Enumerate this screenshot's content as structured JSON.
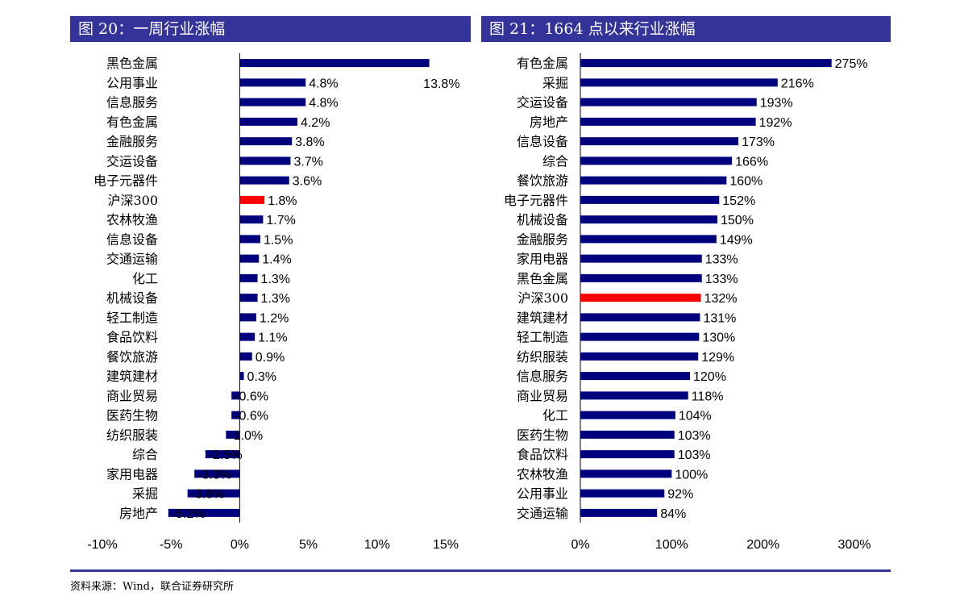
{
  "figures": {
    "left_title": "图 20：一周行业涨幅",
    "right_title": "图 21：1664 点以来行业涨幅"
  },
  "source": "资料来源：Wind，联合证券研究所",
  "colors": {
    "bar": "#00007f",
    "highlight": "#ff0000",
    "title_bg": "#33339a"
  },
  "chart_data": [
    {
      "type": "bar",
      "orientation": "horizontal",
      "title": "图 20：一周行业涨幅",
      "categories": [
        "黑色金属",
        "公用事业",
        "信息服务",
        "有色金属",
        "金融服务",
        "交运设备",
        "电子元器件",
        "沪深300",
        "农林牧渔",
        "信息设备",
        "交通运输",
        "化工",
        "机械设备",
        "轻工制造",
        "食品饮料",
        "餐饮旅游",
        "建筑建材",
        "商业贸易",
        "医药生物",
        "纺织服装",
        "综合",
        "家用电器",
        "采掘",
        "房地产"
      ],
      "values": [
        13.8,
        4.8,
        4.8,
        4.2,
        3.8,
        3.7,
        3.6,
        1.8,
        1.7,
        1.5,
        1.4,
        1.3,
        1.3,
        1.2,
        1.1,
        0.9,
        0.3,
        -0.6,
        -0.6,
        -1.0,
        -2.5,
        -3.3,
        -3.8,
        -5.2
      ],
      "value_labels": [
        "13.8%",
        "4.8%",
        "4.8%",
        "4.2%",
        "3.8%",
        "3.7%",
        "3.6%",
        "1.8%",
        "1.7%",
        "1.5%",
        "1.4%",
        "1.3%",
        "1.3%",
        "1.2%",
        "1.1%",
        "0.9%",
        "0.3%",
        "-0.6%",
        "-0.6%",
        "-1.0%",
        "-2.5%",
        "-3.3%",
        "-3.8%",
        "-5.2%"
      ],
      "highlight_category": "沪深300",
      "xlim": [
        -10,
        15
      ],
      "xticks": [
        -10,
        -5,
        0,
        5,
        10,
        15
      ],
      "xtick_labels": [
        "-10%",
        "-5%",
        "0%",
        "5%",
        "10%",
        "15%"
      ],
      "grid": false
    },
    {
      "type": "bar",
      "orientation": "horizontal",
      "title": "图 21：1664 点以来行业涨幅",
      "categories": [
        "有色金属",
        "采掘",
        "交运设备",
        "房地产",
        "信息设备",
        "综合",
        "餐饮旅游",
        "电子元器件",
        "机械设备",
        "金融服务",
        "家用电器",
        "黑色金属",
        "沪深300",
        "建筑建材",
        "轻工制造",
        "纺织服装",
        "信息服务",
        "商业贸易",
        "化工",
        "医药生物",
        "食品饮料",
        "农林牧渔",
        "公用事业",
        "交通运输"
      ],
      "values": [
        275,
        216,
        193,
        192,
        173,
        166,
        160,
        152,
        150,
        149,
        133,
        133,
        132,
        131,
        130,
        129,
        120,
        118,
        104,
        103,
        103,
        100,
        92,
        84
      ],
      "value_labels": [
        "275%",
        "216%",
        "193%",
        "192%",
        "173%",
        "166%",
        "160%",
        "152%",
        "150%",
        "149%",
        "133%",
        "133%",
        "132%",
        "131%",
        "130%",
        "129%",
        "120%",
        "118%",
        "104%",
        "103%",
        "103%",
        "100%",
        "92%",
        "84%"
      ],
      "highlight_category": "沪深300",
      "xlim": [
        0,
        300
      ],
      "xticks": [
        0,
        100,
        200,
        300
      ],
      "xtick_labels": [
        "0%",
        "100%",
        "200%",
        "300%"
      ],
      "grid": false
    }
  ]
}
